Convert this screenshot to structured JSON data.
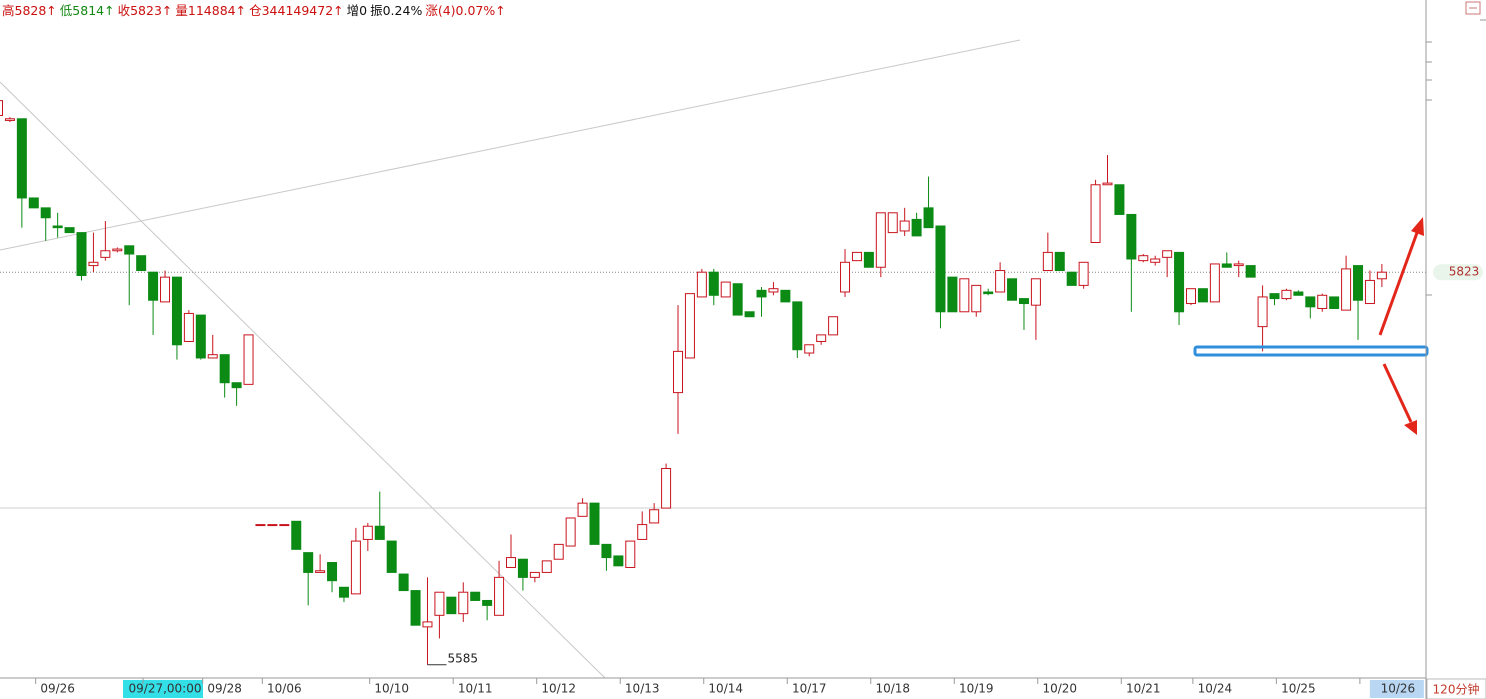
{
  "chart_data": {
    "type": "candlestick",
    "header": [
      {
        "text": "高5828↑",
        "color": "#cc1010"
      },
      {
        "text": "低5814↑",
        "color": "#118811"
      },
      {
        "text": "收5823↑",
        "color": "#cc1010"
      },
      {
        "text": "量114884↑",
        "color": "#cc1010"
      },
      {
        "text": "仓344149472↑",
        "color": "#cc1010"
      },
      {
        "text": "增0",
        "color": "#111111"
      },
      {
        "text": "振0.24%",
        "color": "#111111"
      },
      {
        "text": "涨(4)0.07%↑",
        "color": "#cc1010"
      }
    ],
    "period": "120分钟",
    "up_color": "#c8141e",
    "down_color": "#0b8a14",
    "ylim": [
      5577,
      5988
    ],
    "last_price": 5823,
    "low_mark": 5585,
    "cursor_index": 14,
    "categories": [
      null,
      null,
      null,
      null,
      null,
      "09/26",
      null,
      null,
      null,
      null,
      null,
      null,
      null,
      null,
      "09/27,00:00",
      null,
      null,
      null,
      null,
      "09/28",
      null,
      null,
      null,
      null,
      "10/06",
      null,
      null,
      null,
      null,
      null,
      null,
      null,
      null,
      "10/10",
      null,
      null,
      null,
      null,
      null,
      null,
      "10/11",
      null,
      null,
      null,
      null,
      null,
      null,
      "10/12",
      null,
      null,
      null,
      null,
      null,
      null,
      "10/13",
      null,
      null,
      null,
      null,
      null,
      null,
      "10/14",
      null,
      null,
      null,
      null,
      null,
      null,
      "10/17",
      null,
      null,
      null,
      null,
      null,
      null,
      "10/18",
      null,
      null,
      null,
      null,
      null,
      null,
      "10/19",
      null,
      null,
      null,
      null,
      null,
      null,
      "10/20",
      null,
      null,
      null,
      null,
      null,
      null,
      "10/21",
      null,
      null,
      null,
      null,
      null,
      "10/24",
      null,
      null,
      null,
      null,
      null,
      null,
      "10/25",
      null,
      null,
      null,
      null,
      null,
      null,
      "10/26"
    ],
    "ohlc": [
      [
        5918,
        5927,
        5918,
        5927
      ],
      [
        5915,
        5917,
        5914,
        5916
      ],
      [
        5916,
        5916,
        5850,
        5868
      ],
      [
        5868,
        5868,
        5862,
        5862
      ],
      [
        5862,
        5862,
        5842,
        5856
      ],
      [
        5851,
        5859,
        5844,
        5850
      ],
      [
        5850,
        5850,
        5847,
        5847
      ],
      [
        5847,
        5847,
        5818,
        5821
      ],
      [
        5827,
        5847,
        5823,
        5829
      ],
      [
        5832,
        5854,
        5830,
        5836
      ],
      [
        5836,
        5838,
        5835,
        5837
      ],
      [
        5839,
        5839,
        5803,
        5834
      ],
      [
        5833,
        5833,
        5824,
        5824
      ],
      [
        5823,
        5823,
        5785,
        5806
      ],
      [
        5805,
        5824,
        5805,
        5820
      ],
      [
        5820,
        5820,
        5770,
        5779
      ],
      [
        5781,
        5800,
        5781,
        5798
      ],
      [
        5797,
        5797,
        5770,
        5771
      ],
      [
        5771,
        5785,
        5771,
        5773
      ],
      [
        5773,
        5773,
        5747,
        5756
      ],
      [
        5756,
        5756,
        5742,
        5753
      ],
      [
        5755,
        5785,
        5755,
        5785
      ],
      [
        5670,
        5670,
        5670,
        5670
      ],
      [
        5670,
        5670,
        5670,
        5670
      ],
      [
        5670,
        5670,
        5670,
        5670
      ],
      [
        5672,
        5672,
        5655,
        5655
      ],
      [
        5653,
        5653,
        5621,
        5641
      ],
      [
        5641,
        5652,
        5641,
        5642
      ],
      [
        5647,
        5647,
        5629,
        5636
      ],
      [
        5632,
        5632,
        5623,
        5626
      ],
      [
        5628,
        5668,
        5628,
        5660
      ],
      [
        5661,
        5671,
        5654,
        5669
      ],
      [
        5669,
        5690,
        5661,
        5661
      ],
      [
        5660,
        5660,
        5641,
        5641
      ],
      [
        5640,
        5640,
        5630,
        5630
      ],
      [
        5630,
        5630,
        5609,
        5609
      ],
      [
        5608,
        5638,
        5585,
        5611
      ],
      [
        5615,
        5629,
        5601,
        5629
      ],
      [
        5626,
        5626,
        5616,
        5616
      ],
      [
        5616,
        5635,
        5611,
        5629
      ],
      [
        5629,
        5629,
        5624,
        5624
      ],
      [
        5624,
        5624,
        5612,
        5621
      ],
      [
        5615,
        5648,
        5615,
        5638
      ],
      [
        5644,
        5664,
        5644,
        5650
      ],
      [
        5649,
        5649,
        5630,
        5638
      ],
      [
        5638,
        5641,
        5635,
        5641
      ],
      [
        5641,
        5648,
        5641,
        5648
      ],
      [
        5649,
        5658,
        5649,
        5658
      ],
      [
        5657,
        5674,
        5657,
        5674
      ],
      [
        5675,
        5686,
        5675,
        5683
      ],
      [
        5683,
        5683,
        5658,
        5658
      ],
      [
        5658,
        5658,
        5642,
        5650
      ],
      [
        5651,
        5651,
        5645,
        5645
      ],
      [
        5644,
        5660,
        5644,
        5660
      ],
      [
        5661,
        5678,
        5661,
        5670
      ],
      [
        5671,
        5683,
        5671,
        5679
      ],
      [
        5680,
        5707,
        5680,
        5704
      ],
      [
        5750,
        5803,
        5725,
        5775
      ],
      [
        5771,
        5810,
        5771,
        5810
      ],
      [
        5808,
        5825,
        5808,
        5823
      ],
      [
        5823,
        5825,
        5803,
        5809
      ],
      [
        5808,
        5817,
        5808,
        5817
      ],
      [
        5816,
        5816,
        5797,
        5797
      ],
      [
        5799,
        5799,
        5796,
        5796
      ],
      [
        5812,
        5814,
        5796,
        5808
      ],
      [
        5811,
        5817,
        5809,
        5813
      ],
      [
        5812,
        5812,
        5805,
        5805
      ],
      [
        5805,
        5805,
        5771,
        5776
      ],
      [
        5774,
        5779,
        5772,
        5779
      ],
      [
        5781,
        5785,
        5779,
        5785
      ],
      [
        5785,
        5796,
        5785,
        5796
      ],
      [
        5811,
        5837,
        5808,
        5829
      ],
      [
        5830,
        5835,
        5830,
        5835
      ],
      [
        5835,
        5835,
        5826,
        5826
      ],
      [
        5826,
        5859,
        5820,
        5859
      ],
      [
        5847,
        5859,
        5847,
        5859
      ],
      [
        5848,
        5862,
        5845,
        5854
      ],
      [
        5855,
        5859,
        5845,
        5845
      ],
      [
        5862,
        5881,
        5850,
        5850
      ],
      [
        5851,
        5851,
        5789,
        5799
      ],
      [
        5820,
        5820,
        5799,
        5799
      ],
      [
        5799,
        5819,
        5799,
        5819
      ],
      [
        5799,
        5815,
        5796,
        5815
      ],
      [
        5811,
        5813,
        5809,
        5810
      ],
      [
        5811,
        5829,
        5811,
        5824
      ],
      [
        5819,
        5819,
        5806,
        5806
      ],
      [
        5807,
        5807,
        5788,
        5804
      ],
      [
        5803,
        5819,
        5782,
        5819
      ],
      [
        5824,
        5847,
        5824,
        5835
      ],
      [
        5835,
        5835,
        5824,
        5824
      ],
      [
        5823,
        5823,
        5815,
        5815
      ],
      [
        5815,
        5829,
        5813,
        5829
      ],
      [
        5841,
        5879,
        5841,
        5876
      ],
      [
        5876,
        5894,
        5876,
        5877
      ],
      [
        5876,
        5876,
        5858,
        5858
      ],
      [
        5858,
        5858,
        5799,
        5831
      ],
      [
        5830,
        5834,
        5829,
        5833
      ],
      [
        5829,
        5833,
        5827,
        5831
      ],
      [
        5832,
        5836,
        5820,
        5836
      ],
      [
        5835,
        5835,
        5791,
        5799
      ],
      [
        5804,
        5813,
        5803,
        5813
      ],
      [
        5813,
        5813,
        5805,
        5805
      ],
      [
        5805,
        5828,
        5805,
        5828
      ],
      [
        5828,
        5835,
        5826,
        5826
      ],
      [
        5827,
        5830,
        5820,
        5828
      ],
      [
        5827,
        5827,
        5820,
        5820
      ],
      [
        5790,
        5815,
        5775,
        5808
      ],
      [
        5810,
        5810,
        5803,
        5807
      ],
      [
        5807,
        5813,
        5806,
        5812
      ],
      [
        5811,
        5812,
        5809,
        5809
      ],
      [
        5808,
        5808,
        5795,
        5802
      ],
      [
        5801,
        5810,
        5799,
        5809
      ],
      [
        5808,
        5808,
        5801,
        5801
      ],
      [
        5800,
        5833,
        5800,
        5825
      ],
      [
        5827,
        5827,
        5782,
        5806
      ],
      [
        5804,
        5824,
        5804,
        5818
      ],
      [
        5819,
        5828,
        5814,
        5823
      ]
    ]
  }
}
